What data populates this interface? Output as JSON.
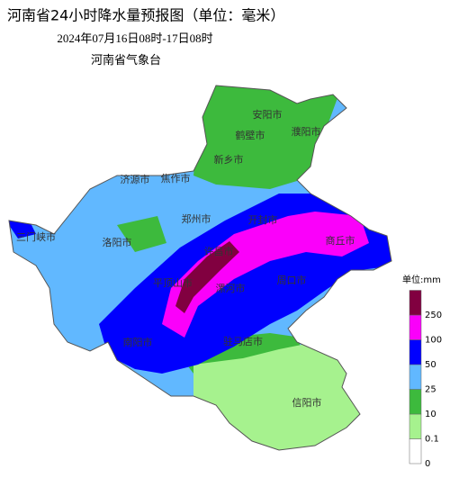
{
  "header": {
    "title": "河南省24小时降水量预报图（单位：毫米）",
    "subtitle": "2024年07月16日08时-17日08时",
    "issuer": "河南省气象台"
  },
  "legend": {
    "unit": "单位:mm",
    "labels": [
      0,
      0.1,
      10,
      25,
      50,
      100,
      250
    ],
    "colors": [
      "#ffffff",
      "#a6f28e",
      "#3dba3d",
      "#61b8ff",
      "#0000fe",
      "#fa00fa",
      "#810040"
    ]
  },
  "cities": [
    "安阳市",
    "鹤壁市",
    "濮阳市",
    "新乡市",
    "济源市",
    "焦作市",
    "郑州市",
    "开封市",
    "商丘市",
    "三门峡市",
    "洛阳市",
    "许昌市",
    "平顶山市",
    "漯河市",
    "周口市",
    "南阳市",
    "驻马店市",
    "信阳市"
  ]
}
